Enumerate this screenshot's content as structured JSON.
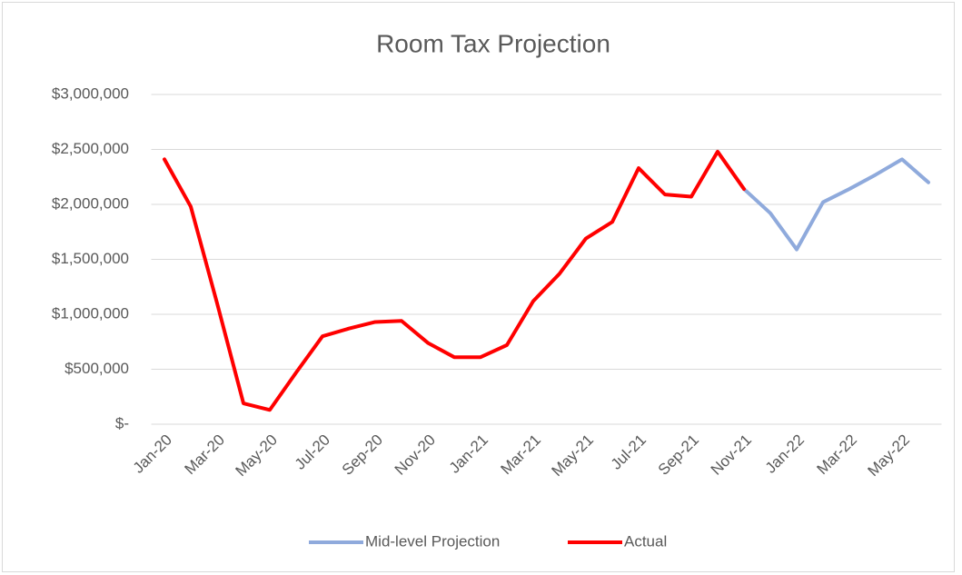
{
  "chart_data": {
    "type": "line",
    "title": "Room Tax Projection",
    "categories": [
      "Jan-20",
      null,
      "Mar-20",
      null,
      "May-20",
      null,
      "Jul-20",
      null,
      "Sep-20",
      null,
      "Nov-20",
      null,
      "Jan-21",
      null,
      "Mar-21",
      null,
      "May-21",
      null,
      "Jul-21",
      null,
      "Sep-21",
      null,
      "Nov-21",
      null,
      "Jan-22",
      null,
      "Mar-22",
      null,
      "May-22",
      null
    ],
    "series": [
      {
        "name": "Mid-level Projection",
        "color": "#8faadc",
        "values": [
          null,
          null,
          null,
          null,
          null,
          null,
          null,
          null,
          null,
          null,
          null,
          null,
          null,
          null,
          null,
          null,
          null,
          null,
          null,
          null,
          null,
          null,
          2140000,
          1920000,
          1590000,
          2020000,
          2140000,
          2270000,
          2410000,
          2200000
        ]
      },
      {
        "name": "Actual",
        "color": "#ff0000",
        "values": [
          2410000,
          1980000,
          1100000,
          190000,
          130000,
          470000,
          800000,
          870000,
          930000,
          940000,
          740000,
          610000,
          610000,
          720000,
          1120000,
          1370000,
          1690000,
          1840000,
          2330000,
          2090000,
          2070000,
          2480000,
          2140000,
          null,
          null,
          null,
          null,
          null,
          null,
          null
        ]
      }
    ],
    "ylim": [
      0,
      3000000
    ],
    "yticks": [
      {
        "value": 0,
        "label": "$-"
      },
      {
        "value": 500000,
        "label": "$500,000"
      },
      {
        "value": 1000000,
        "label": "$1,000,000"
      },
      {
        "value": 1500000,
        "label": "$1,500,000"
      },
      {
        "value": 2000000,
        "label": "$2,000,000"
      },
      {
        "value": 2500000,
        "label": "$2,500,000"
      },
      {
        "value": 3000000,
        "label": "$3,000,000"
      }
    ],
    "grid": true,
    "legend": "bottom"
  }
}
